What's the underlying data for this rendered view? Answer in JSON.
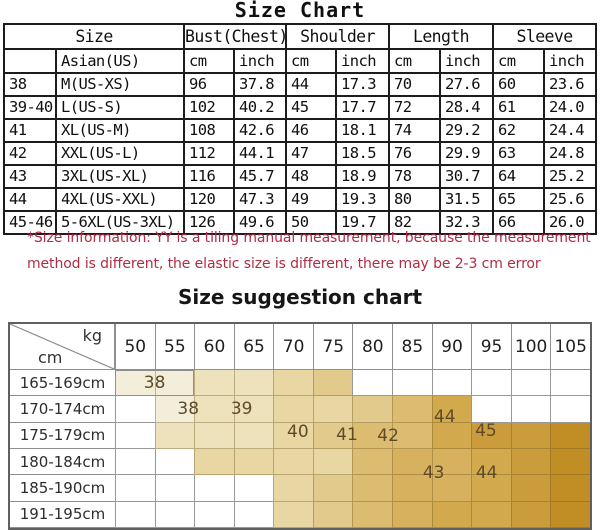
{
  "note": {
    "color": "#b12c44",
    "lines": [
      "*Size information: YY is a tiling manual measurement, because the measurement",
      "method is different, the elastic size is different, there may be 2-3 cm error"
    ]
  },
  "chart_data": [
    {
      "type": "table",
      "title": "Size Chart",
      "header_groups": [
        {
          "label": "Size",
          "span": 2
        },
        {
          "label": "Bust(Chest)",
          "span": 2
        },
        {
          "label": "Shoulder",
          "span": 2
        },
        {
          "label": "Length",
          "span": 2
        },
        {
          "label": "Sleeve",
          "span": 2
        }
      ],
      "subheader": [
        "",
        "Asian(US)",
        "cm",
        "inch",
        "cm",
        "inch",
        "cm",
        "inch",
        "cm",
        "inch"
      ],
      "rows": [
        [
          "38",
          "M(US-XS)",
          "96",
          "37.8",
          "44",
          "17.3",
          "70",
          "27.6",
          "60",
          "23.6"
        ],
        [
          "39-40",
          "L(US-S)",
          "102",
          "40.2",
          "45",
          "17.7",
          "72",
          "28.4",
          "61",
          "24.0"
        ],
        [
          "41",
          "XL(US-M)",
          "108",
          "42.6",
          "46",
          "18.1",
          "74",
          "29.2",
          "62",
          "24.4"
        ],
        [
          "42",
          "XXL(US-L)",
          "112",
          "44.1",
          "47",
          "18.5",
          "76",
          "29.9",
          "63",
          "24.8"
        ],
        [
          "43",
          "3XL(US-XL)",
          "116",
          "45.7",
          "48",
          "18.9",
          "78",
          "30.7",
          "64",
          "25.2"
        ],
        [
          "44",
          "4XL(US-XXL)",
          "120",
          "47.3",
          "49",
          "19.3",
          "80",
          "31.5",
          "65",
          "25.6"
        ],
        [
          "45-46",
          "5-6XL(US-3XL)",
          "126",
          "49.6",
          "50",
          "19.7",
          "82",
          "32.3",
          "66",
          "26.0"
        ]
      ]
    },
    {
      "type": "heatmap",
      "title": "Size suggestion chart",
      "x_axis_label": "kg",
      "y_axis_label": "cm",
      "x_ticks": [
        "50",
        "55",
        "60",
        "65",
        "70",
        "75",
        "80",
        "85",
        "90",
        "95",
        "100",
        "105"
      ],
      "y_ticks": [
        "165-169cm",
        "170-174cm",
        "175-179cm",
        "180-184cm",
        "185-190cm",
        "191-195cm"
      ],
      "palette": {
        "w": "#ffffff",
        "a": "#f3eed9",
        "b": "#eee2bd",
        "c": "#e8d6a3",
        "d": "#e2ca8c",
        "e": "#dcbc71",
        "f": "#d7b15e",
        "g": "#d3a94e",
        "h": "#cb9c3c",
        "i": "#c18e26"
      },
      "cells": [
        [
          "a",
          "a",
          "b",
          "b",
          "c",
          "d",
          "w",
          "w",
          "w",
          "w",
          "w",
          "w"
        ],
        [
          "w",
          "a",
          "b",
          "b",
          "c",
          "c",
          "d",
          "e",
          "g",
          "w",
          "w",
          "w"
        ],
        [
          "w",
          "b",
          "b",
          "b",
          "c",
          "d",
          "e",
          "e",
          "g",
          "h",
          "h",
          "i"
        ],
        [
          "w",
          "w",
          "c",
          "c",
          "c",
          "c",
          "e",
          "f",
          "f",
          "g",
          "h",
          "i"
        ],
        [
          "w",
          "w",
          "w",
          "w",
          "c",
          "d",
          "e",
          "f",
          "f",
          "g",
          "h",
          "i"
        ],
        [
          "w",
          "w",
          "w",
          "w",
          "c",
          "d",
          "e",
          "f",
          "g",
          "g",
          "h",
          "i"
        ]
      ],
      "size_labels": [
        {
          "text": "38",
          "row": 0.5,
          "col": 1.0,
          "boxed": true,
          "box": {
            "row": 0,
            "col": 0,
            "colSpan": 2,
            "rowSpan": 1
          }
        },
        {
          "text": "38",
          "row": 1.48,
          "col": 1.85
        },
        {
          "text": "39",
          "row": 1.48,
          "col": 3.2
        },
        {
          "text": "40",
          "row": 2.35,
          "col": 4.62
        },
        {
          "text": "41",
          "row": 2.45,
          "col": 5.86
        },
        {
          "text": "42",
          "row": 2.5,
          "col": 6.9
        },
        {
          "text": "44",
          "row": 1.8,
          "col": 8.33
        },
        {
          "text": "45",
          "row": 2.3,
          "col": 9.37
        },
        {
          "text": "43",
          "row": 3.9,
          "col": 8.05
        },
        {
          "text": "44",
          "row": 3.9,
          "col": 9.39
        }
      ]
    }
  ]
}
